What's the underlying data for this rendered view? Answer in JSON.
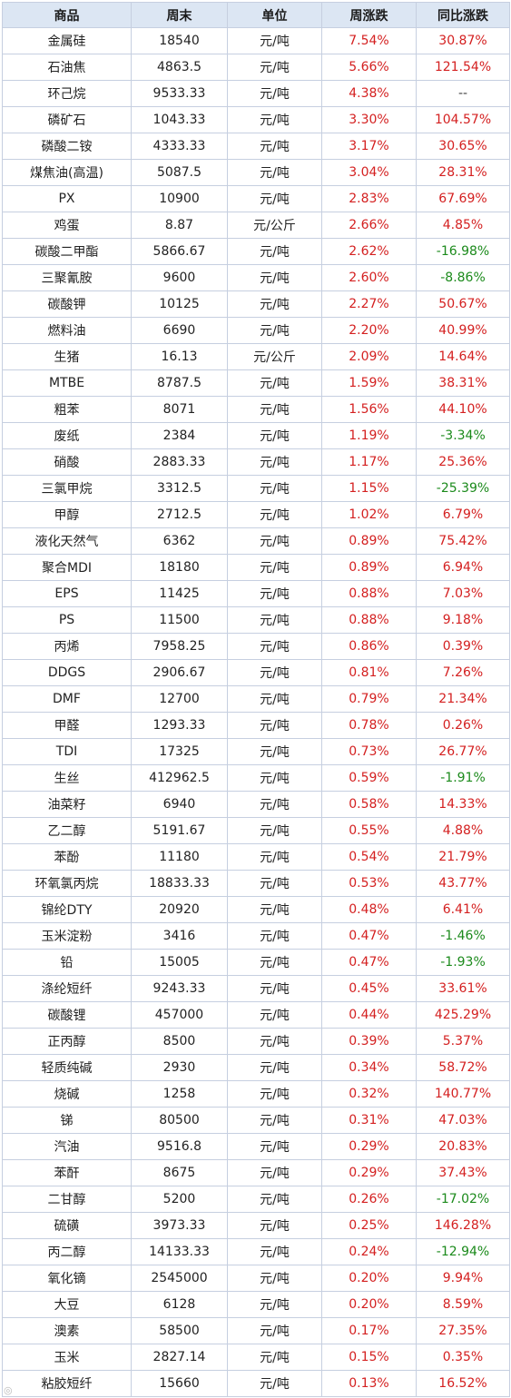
{
  "headers": [
    "商品",
    "周末",
    "单位",
    "周涨跌",
    "同比涨跌"
  ],
  "colors": {
    "up": "#d42020",
    "down": "#1b8a1b",
    "header_bg": "#dce6f3",
    "border": "#c6cfe0"
  },
  "rows": [
    [
      "金属硅",
      "18540",
      "元/吨",
      "7.54%",
      "30.87%"
    ],
    [
      "石油焦",
      "4863.5",
      "元/吨",
      "5.66%",
      "121.54%"
    ],
    [
      "环己烷",
      "9533.33",
      "元/吨",
      "4.38%",
      "--"
    ],
    [
      "磷矿石",
      "1043.33",
      "元/吨",
      "3.30%",
      "104.57%"
    ],
    [
      "磷酸二铵",
      "4333.33",
      "元/吨",
      "3.17%",
      "30.65%"
    ],
    [
      "煤焦油(高温)",
      "5087.5",
      "元/吨",
      "3.04%",
      "28.31%"
    ],
    [
      "PX",
      "10900",
      "元/吨",
      "2.83%",
      "67.69%"
    ],
    [
      "鸡蛋",
      "8.87",
      "元/公斤",
      "2.66%",
      "4.85%"
    ],
    [
      "碳酸二甲酯",
      "5866.67",
      "元/吨",
      "2.62%",
      "-16.98%"
    ],
    [
      "三聚氰胺",
      "9600",
      "元/吨",
      "2.60%",
      "-8.86%"
    ],
    [
      "碳酸钾",
      "10125",
      "元/吨",
      "2.27%",
      "50.67%"
    ],
    [
      "燃料油",
      "6690",
      "元/吨",
      "2.20%",
      "40.99%"
    ],
    [
      "生猪",
      "16.13",
      "元/公斤",
      "2.09%",
      "14.64%"
    ],
    [
      "MTBE",
      "8787.5",
      "元/吨",
      "1.59%",
      "38.31%"
    ],
    [
      "粗苯",
      "8071",
      "元/吨",
      "1.56%",
      "44.10%"
    ],
    [
      "废纸",
      "2384",
      "元/吨",
      "1.19%",
      "-3.34%"
    ],
    [
      "硝酸",
      "2883.33",
      "元/吨",
      "1.17%",
      "25.36%"
    ],
    [
      "三氯甲烷",
      "3312.5",
      "元/吨",
      "1.15%",
      "-25.39%"
    ],
    [
      "甲醇",
      "2712.5",
      "元/吨",
      "1.02%",
      "6.79%"
    ],
    [
      "液化天然气",
      "6362",
      "元/吨",
      "0.89%",
      "75.42%"
    ],
    [
      "聚合MDI",
      "18180",
      "元/吨",
      "0.89%",
      "6.94%"
    ],
    [
      "EPS",
      "11425",
      "元/吨",
      "0.88%",
      "7.03%"
    ],
    [
      "PS",
      "11500",
      "元/吨",
      "0.88%",
      "9.18%"
    ],
    [
      "丙烯",
      "7958.25",
      "元/吨",
      "0.86%",
      "0.39%"
    ],
    [
      "DDGS",
      "2906.67",
      "元/吨",
      "0.81%",
      "7.26%"
    ],
    [
      "DMF",
      "12700",
      "元/吨",
      "0.79%",
      "21.34%"
    ],
    [
      "甲醛",
      "1293.33",
      "元/吨",
      "0.78%",
      "0.26%"
    ],
    [
      "TDI",
      "17325",
      "元/吨",
      "0.73%",
      "26.77%"
    ],
    [
      "生丝",
      "412962.5",
      "元/吨",
      "0.59%",
      "-1.91%"
    ],
    [
      "油菜籽",
      "6940",
      "元/吨",
      "0.58%",
      "14.33%"
    ],
    [
      "乙二醇",
      "5191.67",
      "元/吨",
      "0.55%",
      "4.88%"
    ],
    [
      "苯酚",
      "11180",
      "元/吨",
      "0.54%",
      "21.79%"
    ],
    [
      "环氧氯丙烷",
      "18833.33",
      "元/吨",
      "0.53%",
      "43.77%"
    ],
    [
      "锦纶DTY",
      "20920",
      "元/吨",
      "0.48%",
      "6.41%"
    ],
    [
      "玉米淀粉",
      "3416",
      "元/吨",
      "0.47%",
      "-1.46%"
    ],
    [
      "铅",
      "15005",
      "元/吨",
      "0.47%",
      "-1.93%"
    ],
    [
      "涤纶短纤",
      "9243.33",
      "元/吨",
      "0.45%",
      "33.61%"
    ],
    [
      "碳酸锂",
      "457000",
      "元/吨",
      "0.44%",
      "425.29%"
    ],
    [
      "正丙醇",
      "8500",
      "元/吨",
      "0.39%",
      "5.37%"
    ],
    [
      "轻质纯碱",
      "2930",
      "元/吨",
      "0.34%",
      "58.72%"
    ],
    [
      "烧碱",
      "1258",
      "元/吨",
      "0.32%",
      "140.77%"
    ],
    [
      "锑",
      "80500",
      "元/吨",
      "0.31%",
      "47.03%"
    ],
    [
      "汽油",
      "9516.8",
      "元/吨",
      "0.29%",
      "20.83%"
    ],
    [
      "苯酐",
      "8675",
      "元/吨",
      "0.29%",
      "37.43%"
    ],
    [
      "二甘醇",
      "5200",
      "元/吨",
      "0.26%",
      "-17.02%"
    ],
    [
      "硫磺",
      "3973.33",
      "元/吨",
      "0.25%",
      "146.28%"
    ],
    [
      "丙二醇",
      "14133.33",
      "元/吨",
      "0.24%",
      "-12.94%"
    ],
    [
      "氧化镝",
      "2545000",
      "元/吨",
      "0.20%",
      "9.94%"
    ],
    [
      "大豆",
      "6128",
      "元/吨",
      "0.20%",
      "8.59%"
    ],
    [
      "澳素",
      "58500",
      "元/吨",
      "0.17%",
      "27.35%"
    ],
    [
      "玉米",
      "2827.14",
      "元/吨",
      "0.15%",
      "0.35%"
    ],
    [
      "粘胶短纤",
      "15660",
      "元/吨",
      "0.13%",
      "16.52%"
    ]
  ]
}
